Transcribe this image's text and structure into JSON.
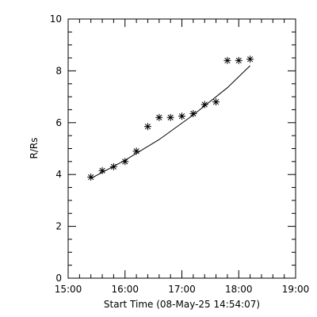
{
  "chart_data": {
    "type": "scatter",
    "title": "",
    "xlabel": "Start Time (08-May-25 14:54:07)",
    "ylabel": "R/Rs",
    "x_unit": "time of day",
    "xlim": [
      "15:00",
      "19:00"
    ],
    "ylim": [
      0,
      10
    ],
    "x_ticks": [
      "15:00",
      "16:00",
      "17:00",
      "18:00",
      "19:00"
    ],
    "y_ticks": [
      "0",
      "2",
      "4",
      "6",
      "8",
      "10"
    ],
    "grid": false,
    "legend": "none",
    "marker": "asterisk",
    "series": [
      {
        "points": [
          {
            "x": "15:24",
            "y": 3.9
          },
          {
            "x": "15:36",
            "y": 4.15
          },
          {
            "x": "15:48",
            "y": 4.3
          },
          {
            "x": "16:00",
            "y": 4.5
          },
          {
            "x": "16:12",
            "y": 4.9
          },
          {
            "x": "16:24",
            "y": 5.85
          },
          {
            "x": "16:36",
            "y": 6.2
          },
          {
            "x": "16:48",
            "y": 6.2
          },
          {
            "x": "17:00",
            "y": 6.25
          },
          {
            "x": "17:12",
            "y": 6.35
          },
          {
            "x": "17:24",
            "y": 6.7
          },
          {
            "x": "17:36",
            "y": 6.8
          },
          {
            "x": "17:48",
            "y": 8.4
          },
          {
            "x": "18:00",
            "y": 8.4
          },
          {
            "x": "18:12",
            "y": 8.45
          }
        ]
      }
    ],
    "fit": [
      {
        "x": "15:24",
        "y": 3.85
      },
      {
        "x": "16:00",
        "y": 4.55
      },
      {
        "x": "16:36",
        "y": 5.35
      },
      {
        "x": "17:12",
        "y": 6.3
      },
      {
        "x": "17:48",
        "y": 7.35
      },
      {
        "x": "18:12",
        "y": 8.2
      }
    ],
    "colors": {
      "axis": "#000000",
      "marker": "#000000",
      "fit_line": "#000000"
    }
  }
}
